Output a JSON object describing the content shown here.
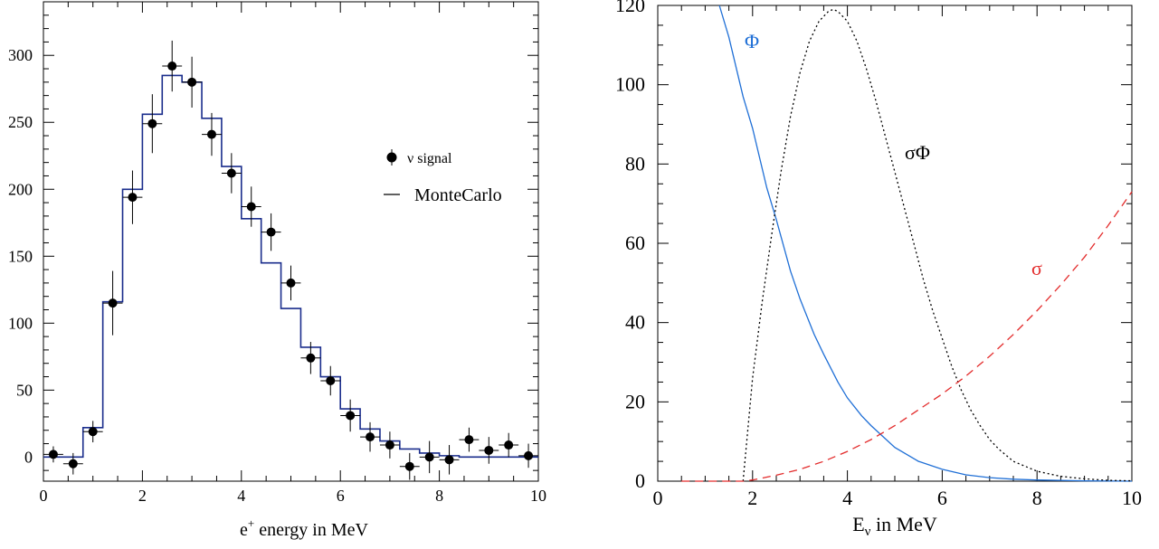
{
  "chart_data": [
    {
      "type": "histogram_with_points",
      "title": "",
      "xlabel": "e<sup>+</sup> energy in MeV",
      "xlabel_base": "e",
      "xlabel_sup": "+",
      "xlabel_rest": " energy in MeV",
      "ylabel": "",
      "xlim": [
        0,
        10
      ],
      "ylim": [
        -18,
        340
      ],
      "xticks": [
        "0",
        "2",
        "4",
        "6",
        "8",
        "10"
      ],
      "yticks": [
        "0",
        "50",
        "100",
        "150",
        "200",
        "250",
        "300"
      ],
      "xtick_values": [
        0,
        2,
        4,
        6,
        8,
        10
      ],
      "ytick_values": [
        0,
        50,
        100,
        150,
        200,
        250,
        300
      ],
      "bin_width": 0.4,
      "legend": {
        "position": "right",
        "signal_label": "ν signal",
        "mc_label": "MonteCarlo"
      },
      "series": [
        {
          "name": "ν signal",
          "kind": "points",
          "color": "#000000",
          "x": [
            0.2,
            0.6,
            1.0,
            1.4,
            1.8,
            2.2,
            2.6,
            3.0,
            3.4,
            3.8,
            4.2,
            4.6,
            5.0,
            5.4,
            5.8,
            6.2,
            6.6,
            7.0,
            7.4,
            7.8,
            8.2,
            8.6,
            9.0,
            9.4,
            9.8
          ],
          "y": [
            2,
            -5,
            19,
            115,
            194,
            249,
            292,
            280,
            241,
            212,
            187,
            168,
            130,
            74,
            57,
            31,
            15,
            9,
            -7,
            0,
            -2,
            13,
            5,
            9,
            1
          ],
          "yerr": [
            6,
            8,
            8,
            24,
            20,
            22,
            19,
            19,
            16,
            15,
            15,
            14,
            13,
            12,
            11,
            12,
            11,
            10,
            10,
            12,
            11,
            9,
            10,
            9,
            9
          ]
        },
        {
          "name": "MonteCarlo",
          "kind": "step",
          "color": "#1a2d8c",
          "edges": [
            0,
            0.4,
            0.8,
            1.2,
            1.6,
            2.0,
            2.4,
            2.8,
            3.2,
            3.6,
            4.0,
            4.4,
            4.8,
            5.2,
            5.6,
            6.0,
            6.4,
            6.8,
            7.2,
            7.6,
            8.0,
            8.4,
            8.8,
            9.2,
            9.6,
            10.0
          ],
          "values": [
            0,
            0,
            22,
            116,
            200,
            256,
            285,
            280,
            253,
            217,
            178,
            145,
            111,
            82,
            60,
            36,
            21,
            12,
            6,
            3,
            1,
            0,
            0,
            0,
            0
          ]
        }
      ]
    },
    {
      "type": "line",
      "title": "",
      "xlabel_base": "E",
      "xlabel_sub": "ν",
      "xlabel_rest": " in MeV",
      "ylabel": "",
      "xlim": [
        0,
        10
      ],
      "ylim": [
        0,
        120
      ],
      "xticks": [
        "0",
        "2",
        "4",
        "6",
        "8",
        "10"
      ],
      "yticks": [
        "0",
        "20",
        "40",
        "60",
        "80",
        "100",
        "120"
      ],
      "xtick_values": [
        0,
        2,
        4,
        6,
        8,
        10
      ],
      "ytick_values": [
        0,
        20,
        40,
        60,
        80,
        100,
        120
      ],
      "series": [
        {
          "name": "Φ",
          "style": "solid",
          "color": "#1f6fd6",
          "x": [
            1.3,
            1.5,
            1.8,
            2.0,
            2.3,
            2.5,
            2.8,
            3.0,
            3.3,
            3.5,
            3.8,
            4.0,
            4.3,
            4.5,
            5.0,
            5.5,
            6.0,
            6.5,
            7.0,
            7.5,
            8.0,
            9.0,
            10.0
          ],
          "y": [
            120,
            112,
            97,
            89,
            74,
            66,
            53,
            46,
            37,
            32,
            25,
            21,
            16.5,
            14,
            8.5,
            5,
            3,
            1.6,
            0.9,
            0.5,
            0.3,
            0.1,
            0.0
          ]
        },
        {
          "name": "σΦ",
          "style": "dotted",
          "color": "#000000",
          "x": [
            1.8,
            2.0,
            2.2,
            2.4,
            2.6,
            2.8,
            3.0,
            3.2,
            3.4,
            3.6,
            3.7,
            3.8,
            4.0,
            4.2,
            4.4,
            4.6,
            4.8,
            5.0,
            5.2,
            5.4,
            5.6,
            5.8,
            6.0,
            6.2,
            6.4,
            6.6,
            6.8,
            7.0,
            7.2,
            7.5,
            8.0,
            8.5,
            9.0,
            9.5,
            10.0
          ],
          "y": [
            0,
            26,
            45,
            62,
            78,
            92,
            103,
            111,
            116,
            118.5,
            119,
            118.5,
            116,
            111,
            104,
            96,
            87,
            78,
            69,
            60,
            51,
            43,
            36,
            29,
            23,
            18,
            14,
            10.5,
            8,
            5,
            2.5,
            1.2,
            0.6,
            0.2,
            0.1
          ]
        },
        {
          "name": "σ",
          "style": "dashed",
          "color": "#e32b2b",
          "x": [
            0.5,
            1.0,
            1.5,
            1.8,
            2.0,
            2.5,
            3.0,
            3.5,
            4.0,
            4.5,
            5.0,
            5.5,
            6.0,
            6.5,
            7.0,
            7.5,
            8.0,
            8.5,
            9.0,
            9.5,
            10.0
          ],
          "y": [
            0,
            0,
            0,
            0,
            0.3,
            1.5,
            3,
            5,
            7.5,
            10.5,
            14,
            18,
            22,
            26.5,
            31.5,
            37,
            43,
            49.5,
            56.5,
            64.5,
            73
          ]
        }
      ],
      "curve_labels": {
        "phi": "Φ",
        "sigma_phi": "σΦ",
        "sigma": "σ"
      }
    }
  ]
}
